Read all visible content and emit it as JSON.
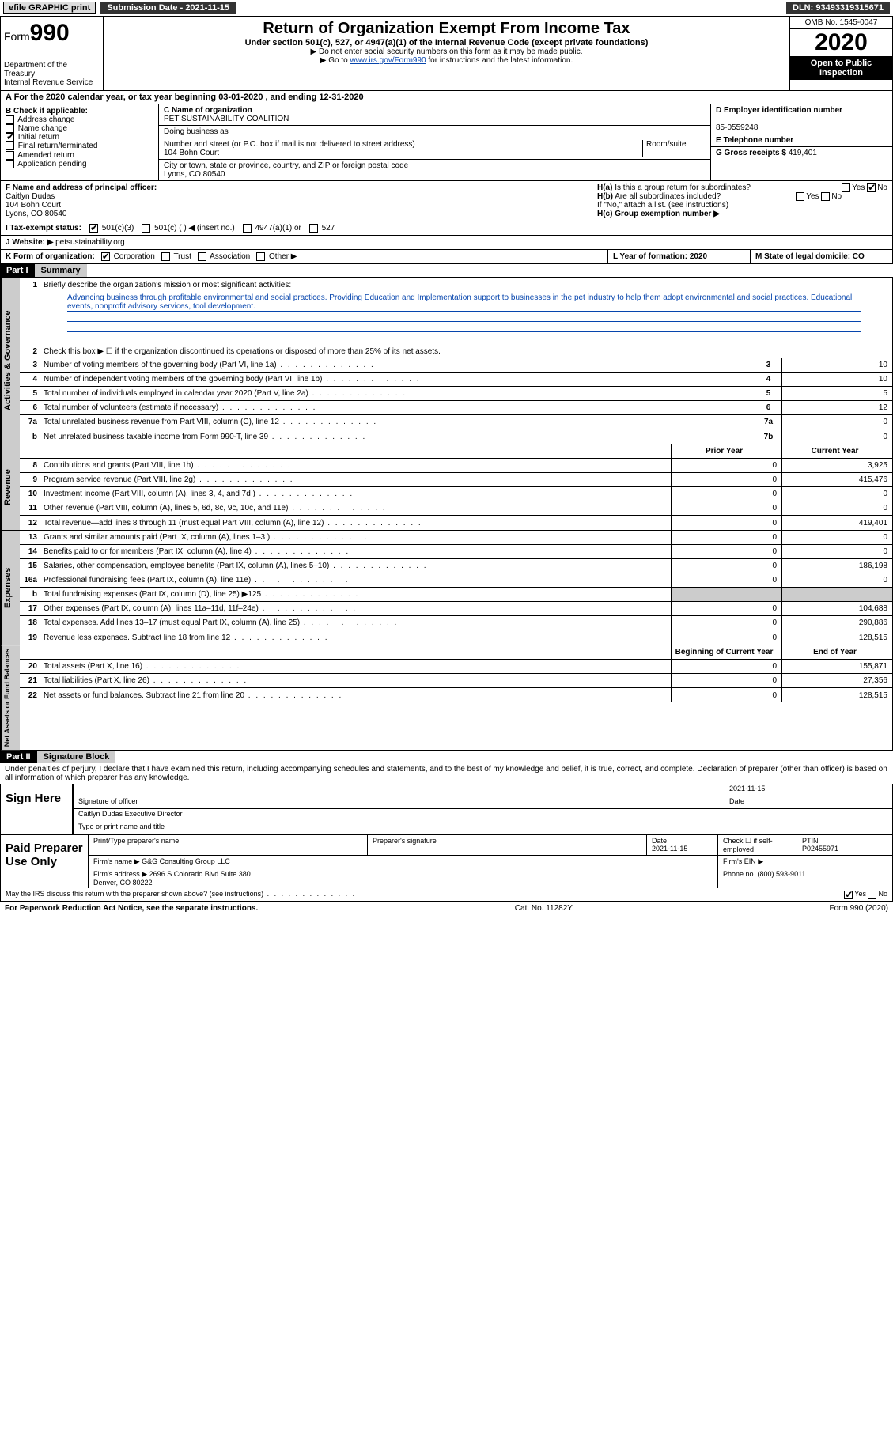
{
  "topbar": {
    "efile": "efile GRAPHIC print",
    "sub_label": "Submission Date - 2021-11-15",
    "dln_label": "DLN: 93493319315671"
  },
  "header": {
    "form_label": "Form",
    "form_num": "990",
    "dept": "Department of the Treasury\nInternal Revenue Service",
    "title": "Return of Organization Exempt From Income Tax",
    "subtitle": "Under section 501(c), 527, or 4947(a)(1) of the Internal Revenue Code (except private foundations)",
    "line1": "▶ Do not enter social security numbers on this form as it may be made public.",
    "line2_pre": "▶ Go to ",
    "line2_link": "www.irs.gov/Form990",
    "line2_post": " for instructions and the latest information.",
    "omb": "OMB No. 1545-0047",
    "year": "2020",
    "inspect": "Open to Public Inspection"
  },
  "row_a": "A For the 2020 calendar year, or tax year beginning 03-01-2020  , and ending 12-31-2020",
  "section_b": {
    "label": "B Check if applicable:",
    "items": [
      "Address change",
      "Name change",
      "Initial return",
      "Final return/terminated",
      "Amended return",
      "Application pending"
    ],
    "checked_idx": 2
  },
  "section_c": {
    "name_lbl": "C Name of organization",
    "name": "PET SUSTAINABILITY COALITION",
    "dba_lbl": "Doing business as",
    "dba": "",
    "addr_lbl": "Number and street (or P.O. box if mail is not delivered to street address)",
    "room_lbl": "Room/suite",
    "addr": "104 Bohn Court",
    "city_lbl": "City or town, state or province, country, and ZIP or foreign postal code",
    "city": "Lyons, CO  80540"
  },
  "section_d": {
    "lbl": "D Employer identification number",
    "val": "85-0559248"
  },
  "section_e": {
    "lbl": "E Telephone number",
    "val": ""
  },
  "section_g": {
    "lbl": "G Gross receipts $ ",
    "val": "419,401"
  },
  "section_f": {
    "lbl": "F  Name and address of principal officer:",
    "name": "Caitlyn Dudas",
    "addr1": "104 Bohn Court",
    "addr2": "Lyons, CO  80540"
  },
  "section_h": {
    "a_lbl": "H(a)  Is this a group return for subordinates?",
    "b_lbl": "H(b)  Are all subordinates included?",
    "b_note": "If \"No,\" attach a list. (see instructions)",
    "c_lbl": "H(c)  Group exemption number ▶"
  },
  "section_i": {
    "lbl": "I  Tax-exempt status:",
    "opts": [
      "501(c)(3)",
      "501(c) (  ) ◀ (insert no.)",
      "4947(a)(1) or",
      "527"
    ]
  },
  "section_j": {
    "lbl": "J  Website: ▶ ",
    "val": "petsustainability.org"
  },
  "section_k": {
    "lbl": "K Form of organization:",
    "opts": [
      "Corporation",
      "Trust",
      "Association",
      "Other ▶"
    ]
  },
  "section_l": "L Year of formation: 2020",
  "section_m": "M State of legal domicile: CO",
  "part1": {
    "hdr": "Part I",
    "title": "Summary"
  },
  "mission": {
    "q1": "Briefly describe the organization's mission or most significant activities:",
    "text": "Advancing business through profitable environmental and social practices. Providing Education and Implementation support to businesses in the pet industry to help them adopt environmental and social practices. Educational events, nonprofit advisory services, tool development.",
    "q2": "Check this box ▶ ☐  if the organization discontinued its operations or disposed of more than 25% of its net assets."
  },
  "gov_rows": [
    {
      "n": "3",
      "d": "Number of voting members of the governing body (Part VI, line 1a)",
      "box": "3",
      "v": "10"
    },
    {
      "n": "4",
      "d": "Number of independent voting members of the governing body (Part VI, line 1b)",
      "box": "4",
      "v": "10"
    },
    {
      "n": "5",
      "d": "Total number of individuals employed in calendar year 2020 (Part V, line 2a)",
      "box": "5",
      "v": "5"
    },
    {
      "n": "6",
      "d": "Total number of volunteers (estimate if necessary)",
      "box": "6",
      "v": "12"
    },
    {
      "n": "7a",
      "d": "Total unrelated business revenue from Part VIII, column (C), line 12",
      "box": "7a",
      "v": "0"
    },
    {
      "n": "b",
      "d": "Net unrelated business taxable income from Form 990-T, line 39",
      "box": "7b",
      "v": "0"
    }
  ],
  "two_col_hdr": {
    "prior": "Prior Year",
    "current": "Current Year"
  },
  "rev_rows": [
    {
      "n": "8",
      "d": "Contributions and grants (Part VIII, line 1h)",
      "p": "0",
      "c": "3,925"
    },
    {
      "n": "9",
      "d": "Program service revenue (Part VIII, line 2g)",
      "p": "0",
      "c": "415,476"
    },
    {
      "n": "10",
      "d": "Investment income (Part VIII, column (A), lines 3, 4, and 7d )",
      "p": "0",
      "c": "0"
    },
    {
      "n": "11",
      "d": "Other revenue (Part VIII, column (A), lines 5, 6d, 8c, 9c, 10c, and 11e)",
      "p": "0",
      "c": "0"
    },
    {
      "n": "12",
      "d": "Total revenue—add lines 8 through 11 (must equal Part VIII, column (A), line 12)",
      "p": "0",
      "c": "419,401"
    }
  ],
  "exp_rows": [
    {
      "n": "13",
      "d": "Grants and similar amounts paid (Part IX, column (A), lines 1–3 )",
      "p": "0",
      "c": "0"
    },
    {
      "n": "14",
      "d": "Benefits paid to or for members (Part IX, column (A), line 4)",
      "p": "0",
      "c": "0"
    },
    {
      "n": "15",
      "d": "Salaries, other compensation, employee benefits (Part IX, column (A), lines 5–10)",
      "p": "0",
      "c": "186,198"
    },
    {
      "n": "16a",
      "d": "Professional fundraising fees (Part IX, column (A), line 11e)",
      "p": "0",
      "c": "0"
    },
    {
      "n": "b",
      "d": "Total fundraising expenses (Part IX, column (D), line 25) ▶125",
      "p": "",
      "c": "",
      "grey": true
    },
    {
      "n": "17",
      "d": "Other expenses (Part IX, column (A), lines 11a–11d, 11f–24e)",
      "p": "0",
      "c": "104,688"
    },
    {
      "n": "18",
      "d": "Total expenses. Add lines 13–17 (must equal Part IX, column (A), line 25)",
      "p": "0",
      "c": "290,886"
    },
    {
      "n": "19",
      "d": "Revenue less expenses. Subtract line 18 from line 12",
      "p": "0",
      "c": "128,515"
    }
  ],
  "na_hdr": {
    "begin": "Beginning of Current Year",
    "end": "End of Year"
  },
  "na_rows": [
    {
      "n": "20",
      "d": "Total assets (Part X, line 16)",
      "p": "0",
      "c": "155,871"
    },
    {
      "n": "21",
      "d": "Total liabilities (Part X, line 26)",
      "p": "0",
      "c": "27,356"
    },
    {
      "n": "22",
      "d": "Net assets or fund balances. Subtract line 21 from line 20",
      "p": "0",
      "c": "128,515"
    }
  ],
  "part2": {
    "hdr": "Part II",
    "title": "Signature Block"
  },
  "penalty": "Under penalties of perjury, I declare that I have examined this return, including accompanying schedules and statements, and to the best of my knowledge and belief, it is true, correct, and complete. Declaration of preparer (other than officer) is based on all information of which preparer has any knowledge.",
  "sign": {
    "left": "Sign Here",
    "sig_lbl": "Signature of officer",
    "date": "2021-11-15",
    "date_lbl": "Date",
    "name": "Caitlyn Dudas  Executive Director",
    "name_lbl": "Type or print name and title"
  },
  "prep": {
    "left": "Paid Preparer Use Only",
    "r1": {
      "c1": "Print/Type preparer's name",
      "c2": "Preparer's signature",
      "c3": "Date\n2021-11-15",
      "c4": "Check ☐ if self-employed",
      "c5": "PTIN\nP02455971"
    },
    "r2": {
      "lbl": "Firm's name    ▶",
      "val": "G&G Consulting Group LLC",
      "ein": "Firm's EIN ▶"
    },
    "r3": {
      "lbl": "Firm's address ▶",
      "val": "2696 S Colorado Blvd Suite 380\nDenver, CO  80222",
      "ph": "Phone no. (800) 593-9011"
    }
  },
  "discuss": "May the IRS discuss this return with the preparer shown above? (see instructions)",
  "footer": {
    "left": "For Paperwork Reduction Act Notice, see the separate instructions.",
    "mid": "Cat. No. 11282Y",
    "right": "Form 990 (2020)"
  },
  "side_labels": {
    "gov": "Activities & Governance",
    "rev": "Revenue",
    "exp": "Expenses",
    "na": "Net Assets or Fund Balances"
  }
}
